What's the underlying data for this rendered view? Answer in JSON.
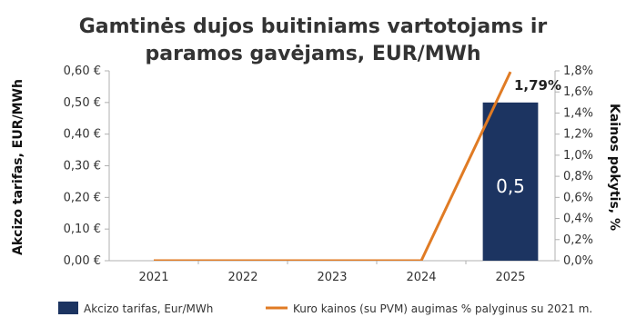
{
  "chart_data": {
    "type": "bar",
    "title_lines": [
      "Gamtinės dujos buitiniams vartotojams ir",
      "paramos gavėjams, EUR/MWh"
    ],
    "categories": [
      "2021",
      "2022",
      "2023",
      "2024",
      "2025"
    ],
    "ylabel": "Akcizo tarifas, EUR/MWh",
    "y2label": "Kainos pokytis, %",
    "ylim": [
      0,
      0.6
    ],
    "y2lim": [
      0,
      1.8
    ],
    "y_ticks": [
      "0,00 €",
      "0,10 €",
      "0,20 €",
      "0,30 €",
      "0,40 €",
      "0,50 €",
      "0,60 €"
    ],
    "y2_ticks": [
      "0,0%",
      "0,2%",
      "0,4%",
      "0,6%",
      "0,8%",
      "1,0%",
      "1,2%",
      "1,4%",
      "1,6%",
      "1,8%"
    ],
    "series": [
      {
        "name": "Akcizo tarifas, Eur/MWh",
        "kind": "bar",
        "axis": "left",
        "color": "#1c3461",
        "values": [
          0,
          0,
          0,
          0,
          0.5
        ],
        "data_labels": [
          "",
          "",
          "",
          "",
          "0,5"
        ]
      },
      {
        "name": "Kuro kainos (su PVM) augimas % palyginus su 2021 m.",
        "kind": "line",
        "axis": "right",
        "color": "#e07b24",
        "values": [
          0,
          0,
          0,
          0,
          1.79
        ]
      }
    ],
    "annotations": [
      {
        "text": "1,79%",
        "category": "2025",
        "axis": "right",
        "value": 1.79
      }
    ],
    "legend_position": "bottom",
    "grid": false
  }
}
